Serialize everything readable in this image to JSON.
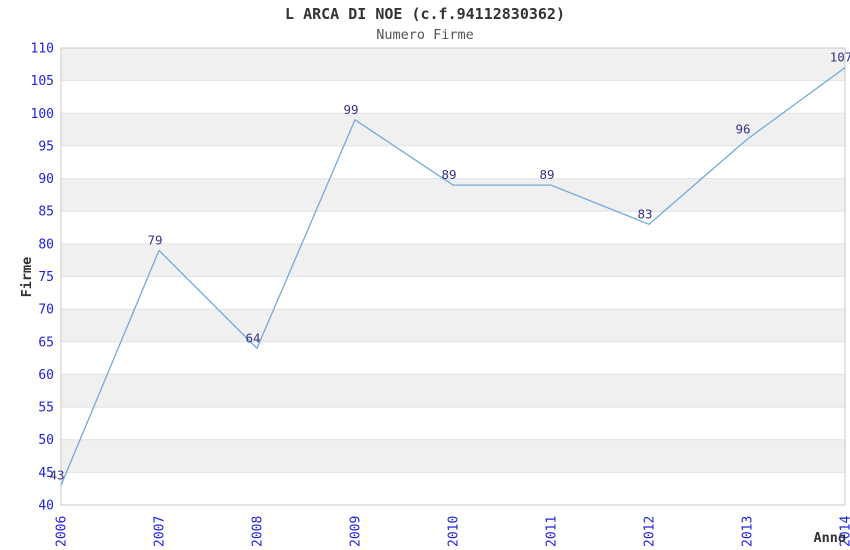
{
  "header": {
    "title": "L ARCA DI NOE (c.f.94112830362)",
    "subtitle": "Numero Firme"
  },
  "chart_data": {
    "type": "line",
    "title": "L ARCA DI NOE (c.f.94112830362)",
    "subtitle": "Numero Firme",
    "categories": [
      "2006",
      "2007",
      "2008",
      "2009",
      "2010",
      "2011",
      "2012",
      "2013",
      "2014"
    ],
    "values": [
      43,
      79,
      64,
      99,
      89,
      89,
      83,
      96,
      107
    ],
    "data_labels": [
      "43",
      "79",
      "64",
      "99",
      "89",
      "89",
      "83",
      "96",
      "107"
    ],
    "xlabel": "Anno",
    "ylabel": "Firme",
    "ylim": [
      40,
      110
    ],
    "ytick_step": 5,
    "ytick_labels": [
      "40",
      "45",
      "50",
      "55",
      "60",
      "65",
      "70",
      "75",
      "80",
      "85",
      "90",
      "95",
      "100",
      "105",
      "110"
    ],
    "grid": "horizontal-alternating-bands",
    "legend": "none",
    "colors": {
      "line": "#74a9dc",
      "axis_tick_labels": "#2222dd",
      "data_labels": "#333388",
      "band_gray": "#f0f0f0",
      "band_white": "#ffffff",
      "plot_border": "#c9c9c9",
      "gridline": "#e2e2e2",
      "title": "#333333",
      "subtitle": "#555555",
      "axis_name_labels": "#333333",
      "background": "#ffffff"
    }
  }
}
